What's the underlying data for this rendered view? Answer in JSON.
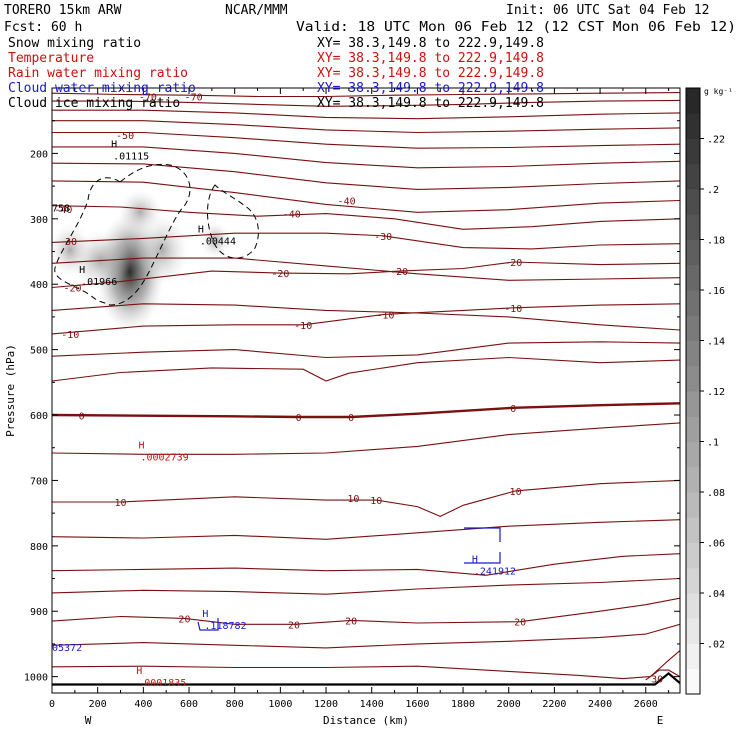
{
  "header": {
    "model": "TORERO  15km ARW",
    "org": "NCAR/MMM",
    "init": "Init: 06 UTC Sat 04 Feb 12",
    "fcst": "Fcst:    60 h",
    "valid": "Valid: 18 UTC Mon 06 Feb 12 (12 CST Mon 06 Feb 12)",
    "fields": [
      {
        "name": "Snow mixing ratio",
        "xy": "XY=  38.3,149.8 to 222.9,149.8",
        "color": "#000000"
      },
      {
        "name": "Temperature",
        "xy": "XY=  38.3,149.8 to 222.9,149.8",
        "color": "#cc1111"
      },
      {
        "name": "Rain water mixing ratio",
        "xy": "XY=  38.3,149.8 to 222.9,149.8",
        "color": "#cc1111"
      },
      {
        "name": "Cloud water mixing ratio",
        "xy": "XY=  38.3,149.8 to 222.9,149.8",
        "color": "#1a1acc"
      },
      {
        "name": "Cloud ice mixing ratio",
        "xy": "XY=  38.3,149.8 to 222.9,149.8",
        "color": "#000000"
      }
    ]
  },
  "chart_data": {
    "type": "cross-section",
    "xlabel": "Distance (km)",
    "ylabel": "Pressure (hPa)",
    "xlim": [
      0,
      2750
    ],
    "ylim": [
      1025,
      100
    ],
    "x_ticks": [
      0,
      200,
      400,
      600,
      800,
      1000,
      1200,
      1400,
      1600,
      1800,
      2000,
      2200,
      2400,
      2600
    ],
    "y_ticks": [
      200,
      300,
      400,
      500,
      600,
      700,
      800,
      900,
      1000
    ],
    "x_end_labels": {
      "left": "W",
      "right": "E"
    },
    "colorbar": {
      "units": "g kg⁻¹",
      "ticks": [
        ".02",
        ".04",
        ".06",
        ".08",
        ".1",
        ".12",
        ".14",
        ".16",
        ".18",
        ".2",
        ".22"
      ],
      "min": 0,
      "max": 0.24
    },
    "temperature_contours": [
      {
        "level": -70,
        "labels": [
          {
            "x": 420,
            "p": 113
          },
          {
            "x": 620,
            "p": 113
          }
        ]
      },
      {
        "level": -50,
        "labels": [
          {
            "x": 320,
            "p": 172
          }
        ]
      },
      {
        "level": -40,
        "labels": [
          {
            "x": 50,
            "p": 285
          },
          {
            "x": 1050,
            "p": 292
          },
          {
            "x": 1290,
            "p": 272
          }
        ]
      },
      {
        "level": -30,
        "labels": [
          {
            "x": 70,
            "p": 334
          },
          {
            "x": 1450,
            "p": 326
          }
        ]
      },
      {
        "level": -20,
        "labels": [
          {
            "x": 90,
            "p": 405
          },
          {
            "x": 1000,
            "p": 383
          },
          {
            "x": 1520,
            "p": 380
          },
          {
            "x": 2020,
            "p": 366
          }
        ]
      },
      {
        "level": -10,
        "labels": [
          {
            "x": 80,
            "p": 476
          },
          {
            "x": 1100,
            "p": 462
          },
          {
            "x": 1460,
            "p": 446
          },
          {
            "x": 2020,
            "p": 436
          }
        ]
      },
      {
        "level": 0,
        "labels": [
          {
            "x": 130,
            "p": 601
          },
          {
            "x": 1080,
            "p": 603
          },
          {
            "x": 1310,
            "p": 603
          },
          {
            "x": 2020,
            "p": 589
          }
        ]
      },
      {
        "level": 10,
        "labels": [
          {
            "x": 300,
            "p": 733
          },
          {
            "x": 1320,
            "p": 727
          },
          {
            "x": 1420,
            "p": 730
          },
          {
            "x": 2030,
            "p": 716
          }
        ]
      },
      {
        "level": 20,
        "labels": [
          {
            "x": 580,
            "p": 911
          },
          {
            "x": 1060,
            "p": 920
          },
          {
            "x": 1310,
            "p": 914
          },
          {
            "x": 2050,
            "p": 916
          }
        ]
      },
      {
        "level": 30,
        "labels": [
          {
            "x": 2650,
            "p": 1003
          }
        ]
      }
    ],
    "maxima": [
      {
        "label": "H",
        "value": ".01115",
        "field": "snow",
        "x": 320,
        "p": 200
      },
      {
        "label": "H",
        "value": ".01966",
        "field": "snow",
        "x": 180,
        "p": 392
      },
      {
        "label": "H",
        "value": ".00444",
        "field": "ice",
        "x": 700,
        "p": 330
      },
      {
        "label": "H",
        "value": ".0002739",
        "field": "rain",
        "x": 440,
        "p": 660
      },
      {
        "label": "H",
        "value": ".0001835",
        "field": "rain",
        "x": 430,
        "p": 1005
      },
      {
        "label": "H",
        "value": ".241912",
        "field": "cloud_water",
        "x": 1900,
        "p": 835
      },
      {
        "label": "H",
        "value": ".118782",
        "field": "cloud_water",
        "x": 720,
        "p": 918
      }
    ],
    "partial_labels": [
      {
        "text": "758",
        "x": 10,
        "p": 283,
        "color": "#000000"
      },
      {
        "text": "05372",
        "x": 10,
        "p": 955,
        "color": "#1a1acc"
      }
    ]
  }
}
